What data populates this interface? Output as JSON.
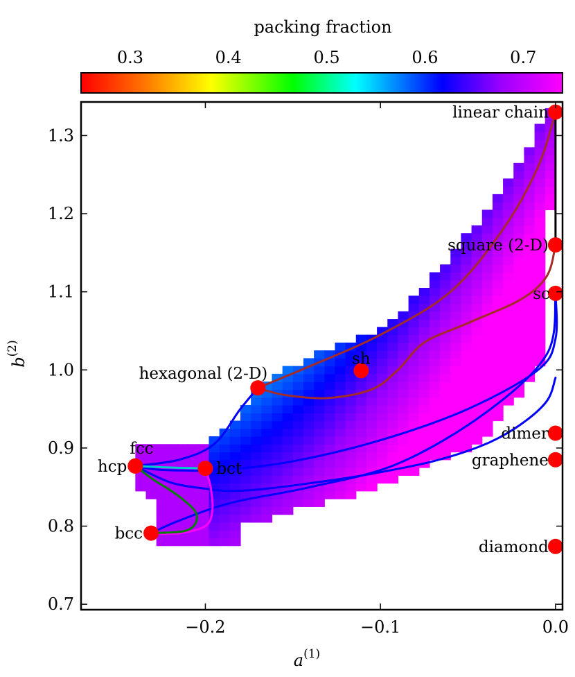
{
  "chart_data": {
    "type": "heatmap",
    "title": "",
    "xlabel": "a",
    "xlabel_sup": "(1)",
    "ylabel": "b",
    "ylabel_sup": "(2)",
    "xlim": [
      -0.271,
      0.004
    ],
    "ylim": [
      0.693,
      1.343
    ],
    "xticks": [
      -0.2,
      -0.1,
      0.0
    ],
    "xtick_labels": [
      "−0.2",
      "−0.1",
      "0.0"
    ],
    "yticks": [
      0.7,
      0.8,
      0.9,
      1.0,
      1.1,
      1.2,
      1.3
    ],
    "ytick_labels": [
      "0.7",
      "0.8",
      "0.9",
      "1.0",
      "1.1",
      "1.2",
      "1.3"
    ],
    "colorbar": {
      "label": "packing fraction",
      "range": [
        0.25,
        0.74
      ],
      "ticks": [
        0.3,
        0.4,
        0.5,
        0.6,
        0.7
      ],
      "tick_labels": [
        "0.3",
        "0.4",
        "0.5",
        "0.6",
        "0.7"
      ]
    },
    "grid": {
      "dx": 0.006,
      "dy": 0.01,
      "note": "packing fraction field over the stable region of (a(1), b(2))"
    },
    "points": [
      {
        "name": "linear chain",
        "x": 0.0,
        "y": 1.33
      },
      {
        "name": "square (2-D)",
        "x": 0.0,
        "y": 1.16
      },
      {
        "name": "sc",
        "x": 0.0,
        "y": 1.098
      },
      {
        "name": "sh",
        "x": -0.111,
        "y": 0.999
      },
      {
        "name": "hexagonal (2-D)",
        "x": -0.17,
        "y": 0.977
      },
      {
        "name": "dimer",
        "x": 0.0,
        "y": 0.919
      },
      {
        "name": "graphene",
        "x": 0.0,
        "y": 0.885
      },
      {
        "name": "fcc",
        "x": -0.24,
        "y": 0.877
      },
      {
        "name": "hcp",
        "x": -0.24,
        "y": 0.877
      },
      {
        "name": "bct",
        "x": -0.2,
        "y": 0.874
      },
      {
        "name": "bcc",
        "x": -0.231,
        "y": 0.791
      },
      {
        "name": "diamond",
        "x": 0.0,
        "y": 0.774
      }
    ],
    "curves": [
      {
        "name": "chain-hexagonal",
        "color": "#a52a2a",
        "points": [
          [
            -0.17,
            0.977
          ],
          [
            -0.14,
            1.005
          ],
          [
            -0.1,
            1.045
          ],
          [
            -0.06,
            1.1
          ],
          [
            -0.03,
            1.18
          ],
          [
            -0.01,
            1.26
          ],
          [
            0.0,
            1.33
          ]
        ]
      },
      {
        "name": "hexagonal-square",
        "color": "#a52a2a",
        "points": [
          [
            -0.17,
            0.977
          ],
          [
            -0.155,
            0.968
          ],
          [
            -0.13,
            0.964
          ],
          [
            -0.105,
            0.975
          ],
          [
            -0.09,
            1.0
          ],
          [
            -0.075,
            1.035
          ],
          [
            -0.05,
            1.06
          ],
          [
            -0.02,
            1.09
          ],
          [
            -0.005,
            1.12
          ],
          [
            0.0,
            1.16
          ]
        ]
      },
      {
        "name": "chain-square",
        "color": "#000000",
        "points": [
          [
            0.0,
            1.33
          ],
          [
            0.0,
            1.16
          ]
        ]
      },
      {
        "name": "sc-fcc",
        "color": "#0000ff",
        "points": [
          [
            0.0,
            1.098
          ],
          [
            0.0,
            1.04
          ],
          [
            -0.01,
            1.0
          ],
          [
            -0.05,
            0.95
          ],
          [
            -0.1,
            0.91
          ],
          [
            -0.15,
            0.883
          ],
          [
            -0.19,
            0.872
          ],
          [
            -0.225,
            0.872
          ],
          [
            -0.24,
            0.877
          ]
        ]
      },
      {
        "name": "sc-bcc",
        "color": "#0000ff",
        "points": [
          [
            0.0,
            1.098
          ],
          [
            -0.005,
            1.02
          ],
          [
            -0.04,
            0.945
          ],
          [
            -0.09,
            0.88
          ],
          [
            -0.14,
            0.85
          ],
          [
            -0.185,
            0.83
          ],
          [
            -0.215,
            0.807
          ],
          [
            -0.231,
            0.791
          ]
        ]
      },
      {
        "name": "hexagonal-fcc",
        "color": "#0000ff",
        "points": [
          [
            -0.17,
            0.977
          ],
          [
            -0.18,
            0.95
          ],
          [
            -0.195,
            0.905
          ],
          [
            -0.215,
            0.885
          ],
          [
            -0.24,
            0.877
          ]
        ]
      },
      {
        "name": "fcc-bct-bcc-loop",
        "color": "#0000ff",
        "points": [
          [
            -0.24,
            0.877
          ],
          [
            -0.22,
            0.856
          ],
          [
            -0.2,
            0.848
          ],
          [
            -0.185,
            0.845
          ],
          [
            -0.165,
            0.848
          ],
          [
            -0.14,
            0.855
          ],
          [
            -0.11,
            0.865
          ],
          [
            -0.07,
            0.883
          ],
          [
            -0.04,
            0.905
          ],
          [
            -0.02,
            0.93
          ],
          [
            -0.005,
            0.96
          ],
          [
            0.0,
            0.99
          ]
        ]
      },
      {
        "name": "fcc-bct",
        "color": "#00cccc",
        "points": [
          [
            -0.24,
            0.877
          ],
          [
            -0.22,
            0.875
          ],
          [
            -0.2,
            0.874
          ]
        ]
      },
      {
        "name": "bct-bcc",
        "color": "#ff00ff",
        "points": [
          [
            -0.2,
            0.874
          ],
          [
            -0.197,
            0.85
          ],
          [
            -0.196,
            0.82
          ],
          [
            -0.2,
            0.8
          ],
          [
            -0.215,
            0.791
          ],
          [
            -0.231,
            0.791
          ]
        ]
      },
      {
        "name": "fcc-bcc",
        "color": "#008000",
        "points": [
          [
            -0.24,
            0.877
          ],
          [
            -0.23,
            0.86
          ],
          [
            -0.215,
            0.838
          ],
          [
            -0.205,
            0.815
          ],
          [
            -0.21,
            0.795
          ],
          [
            -0.231,
            0.791
          ]
        ]
      }
    ]
  }
}
